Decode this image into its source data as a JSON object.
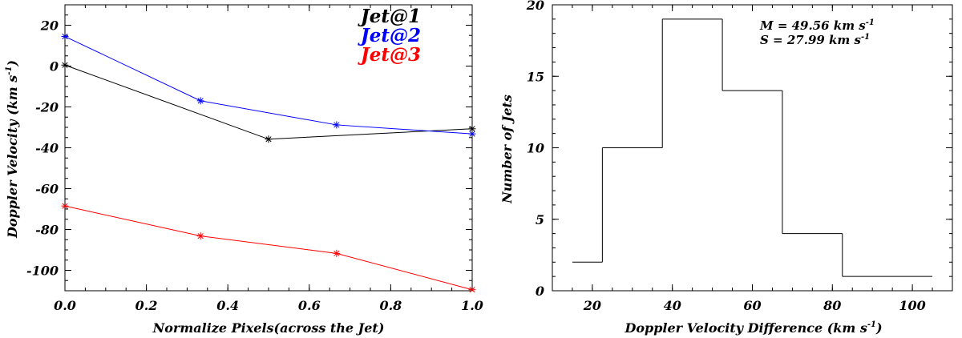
{
  "chart_data": [
    {
      "type": "line",
      "xlabel": "Normalize Pixels(across the Jet)",
      "ylabel": "Doppler Velocity (km s",
      "ylabel_sup": "-1",
      "ylabel_tail": ")",
      "xlim": [
        0.0,
        1.0
      ],
      "ylim": [
        -110,
        30
      ],
      "xticks": [
        "0.0",
        "0.2",
        "0.4",
        "0.6",
        "0.8",
        "1.0"
      ],
      "yticks": [
        "20",
        "0",
        "-20",
        "-40",
        "-60",
        "-80",
        "-100"
      ],
      "series": [
        {
          "name": "Jet@1",
          "color": "#000000",
          "x": [
            0.0,
            0.5,
            1.0
          ],
          "y": [
            0.5,
            -35.8,
            -30.7
          ]
        },
        {
          "name": "Jet@2",
          "color": "#0000ff",
          "x": [
            0.0,
            0.333,
            0.667,
            1.0
          ],
          "y": [
            14.5,
            -17.0,
            -28.8,
            -33.2
          ]
        },
        {
          "name": "Jet@3",
          "color": "#ff0000",
          "x": [
            0.0,
            0.333,
            0.667,
            1.0
          ],
          "y": [
            -68.5,
            -83.2,
            -91.7,
            -109.5
          ]
        }
      ]
    },
    {
      "type": "bar",
      "histogram": true,
      "xlabel": "Doppler Velocity Difference (km s",
      "xlabel_sup": "-1",
      "xlabel_tail": ")",
      "ylabel": "Number of Jets",
      "xlim": [
        10,
        110
      ],
      "ylim": [
        0,
        20
      ],
      "xticks": [
        "20",
        "40",
        "60",
        "80",
        "100"
      ],
      "yticks": [
        "0",
        "5",
        "10",
        "15",
        "20"
      ],
      "bin_edges": [
        15,
        22.5,
        37.5,
        52.5,
        67.5,
        82.5,
        105
      ],
      "counts": [
        2,
        10,
        19,
        14,
        4,
        1
      ],
      "annotation_m": "M = 49.56 km s",
      "annotation_m_sup": "-1",
      "annotation_s": "S = 27.99 km s",
      "annotation_s_sup": "-1"
    }
  ]
}
